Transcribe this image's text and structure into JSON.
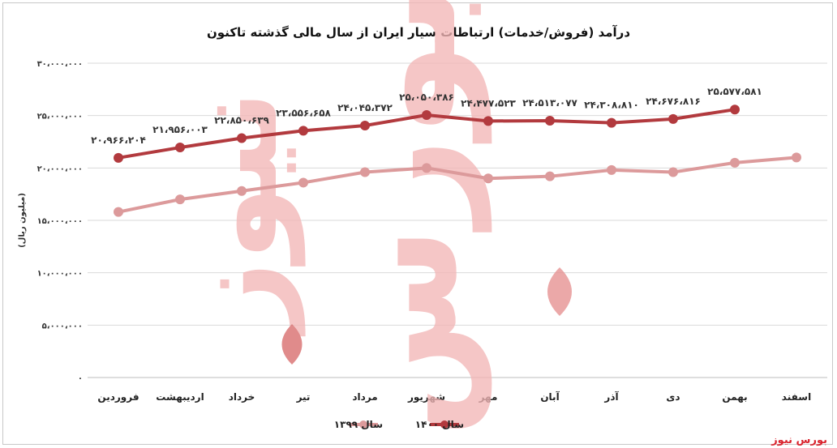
{
  "source": "بورس نیوز",
  "watermark": {
    "line1": "بورس",
    "line2": "نیوز"
  },
  "chart_data": {
    "type": "line",
    "title": "درآمد (فروش/خدمات) ارتباطات سیار ایران از سال مالی گذشته تاکنون",
    "ylabel": "(میلیون ریال)",
    "xlabel": "",
    "ylim": [
      0,
      30000000
    ],
    "yticks": [
      0,
      5000000,
      10000000,
      15000000,
      20000000,
      25000000,
      30000000
    ],
    "ytick_labels": [
      "۰",
      "۵،۰۰۰،۰۰۰",
      "۱۰،۰۰۰،۰۰۰",
      "۱۵،۰۰۰،۰۰۰",
      "۲۰،۰۰۰،۰۰۰",
      "۲۵،۰۰۰،۰۰۰",
      "۳۰،۰۰۰،۰۰۰"
    ],
    "categories": [
      "فروردین",
      "اردیبهشت",
      "خرداد",
      "تیر",
      "مرداد",
      "شهریور",
      "مهر",
      "آبان",
      "آذر",
      "دی",
      "بهمن",
      "اسفند"
    ],
    "grid": true,
    "legend_position": "bottom",
    "series": [
      {
        "name": "سال ۱۴۰۰",
        "color": "#b23a3e",
        "values": [
          20966204,
          21956003,
          22850639,
          23556658,
          24045372,
          25050386,
          24477523,
          24513077,
          24308810,
          24676816,
          25577581,
          null
        ],
        "labels": [
          "۲۰،۹۶۶،۲۰۴",
          "۲۱،۹۵۶،۰۰۳",
          "۲۲،۸۵۰،۶۳۹",
          "۲۳،۵۵۶،۶۵۸",
          "۲۴،۰۴۵،۳۷۲",
          "۲۵،۰۵۰،۳۸۶",
          "۲۴،۴۷۷،۵۲۳",
          "۲۴،۵۱۳،۰۷۷",
          "۲۴،۳۰۸،۸۱۰",
          "۲۴،۶۷۶،۸۱۶",
          "۲۵،۵۷۷،۵۸۱",
          ""
        ]
      },
      {
        "name": "سال ۱۳۹۹",
        "color": "#dc9a9b",
        "values": [
          15800000,
          17000000,
          17800000,
          18600000,
          19600000,
          20000000,
          19000000,
          19200000,
          19800000,
          19600000,
          20500000,
          21000000
        ],
        "labels": []
      }
    ]
  }
}
